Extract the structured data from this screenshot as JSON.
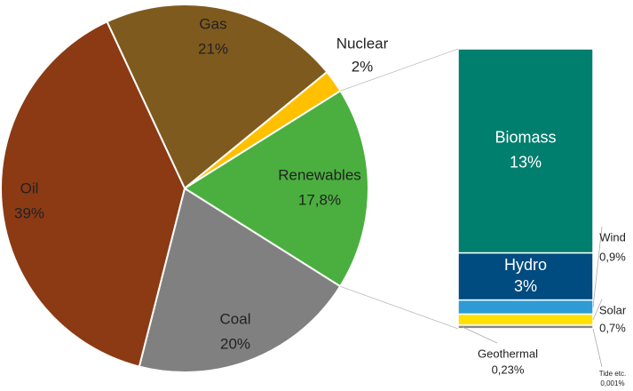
{
  "chart_data": [
    {
      "type": "pie",
      "categories": [
        "Gas",
        "Nuclear",
        "Renewables",
        "Coal",
        "Oil"
      ],
      "values": [
        21,
        2,
        17.8,
        20,
        39
      ],
      "value_labels": [
        "21%",
        "2%",
        "17,8%",
        "20%",
        "39%"
      ],
      "colors": [
        "#7f5a1e",
        "#ffc000",
        "#4aaf3f",
        "#808080",
        "#8b3a14"
      ]
    },
    {
      "type": "stacked-bar",
      "categories": [
        "Biomass",
        "Hydro",
        "Wind",
        "Solar",
        "Geothermal",
        "Tide etc."
      ],
      "values": [
        13,
        3,
        0.9,
        0.7,
        0.23,
        0.001
      ],
      "value_labels": [
        "13%",
        "3%",
        "0,9%",
        "0,7%",
        "0,23%",
        "0,001%"
      ],
      "colors": [
        "#007e6e",
        "#004b7f",
        "#2e9bd6",
        "#ffe000",
        "#888888",
        "#555555"
      ]
    }
  ]
}
